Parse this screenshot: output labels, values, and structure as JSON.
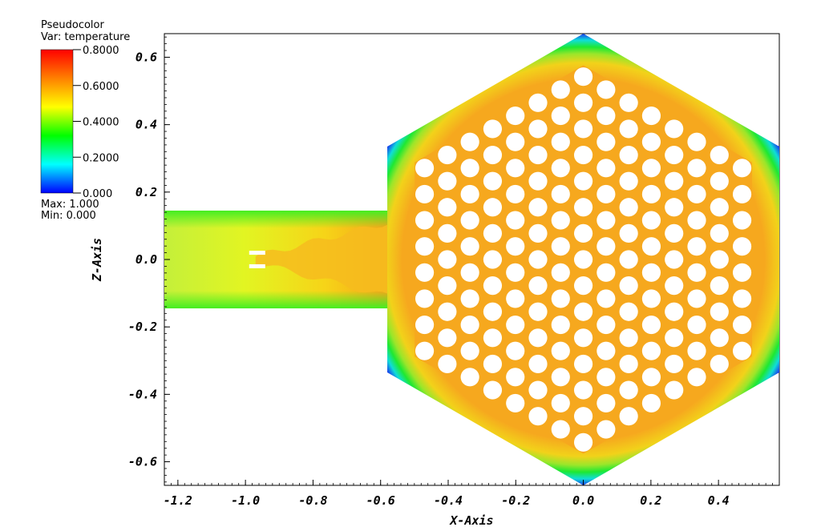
{
  "legend": {
    "plot_type": "Pseudocolor",
    "var_label": "Var: temperature",
    "max_label": "Max:  1.000",
    "min_label": "Min:  0.000",
    "ticks": [
      "0.8000",
      "0.6000",
      "0.4000",
      "0.2000",
      "0.000"
    ],
    "colors": [
      "#ff0000",
      "#ff8000",
      "#ffff00",
      "#00ff00",
      "#00ffff",
      "#0000ff"
    ]
  },
  "chart_data": {
    "type": "heatmap",
    "title": "",
    "xlabel": "X-Axis",
    "ylabel": "Z-Axis",
    "xlim": [
      -1.24,
      0.58
    ],
    "ylim": [
      -0.67,
      0.67
    ],
    "xticks": [
      -1.2,
      -1.0,
      -0.8,
      -0.6,
      -0.4,
      -0.2,
      0.0,
      0.2,
      0.4
    ],
    "xtick_labels": [
      "-1.2",
      "-1.0",
      "-0.8",
      "-0.6",
      "-0.4",
      "-0.2",
      "0.0",
      "0.2",
      "0.4"
    ],
    "yticks": [
      0.6,
      0.4,
      0.2,
      0.0,
      -0.2,
      -0.4,
      -0.6
    ],
    "ytick_labels": [
      "0.6",
      "0.4",
      "0.2",
      "0.0",
      "-0.2",
      "-0.4",
      "-0.6"
    ],
    "variable": "temperature",
    "value_range": [
      0.0,
      1.0
    ],
    "color_range": [
      0.0,
      0.8
    ],
    "domain": {
      "inlet_channel": {
        "x": [
          -1.24,
          -0.58
        ],
        "z": [
          -0.145,
          0.145
        ],
        "dominant_value": 0.5
      },
      "hex_vessel": {
        "center": [
          0.0,
          0.0
        ],
        "circumradius": 0.67,
        "dominant_value": 0.63,
        "wall_value": 0.1
      },
      "rod_pitch": 0.0775,
      "rod_diameter": 0.055,
      "rod_rings": 7,
      "inlet_slots": [
        [
          -0.97,
          0.02
        ],
        [
          -0.97,
          -0.02
        ]
      ]
    }
  }
}
